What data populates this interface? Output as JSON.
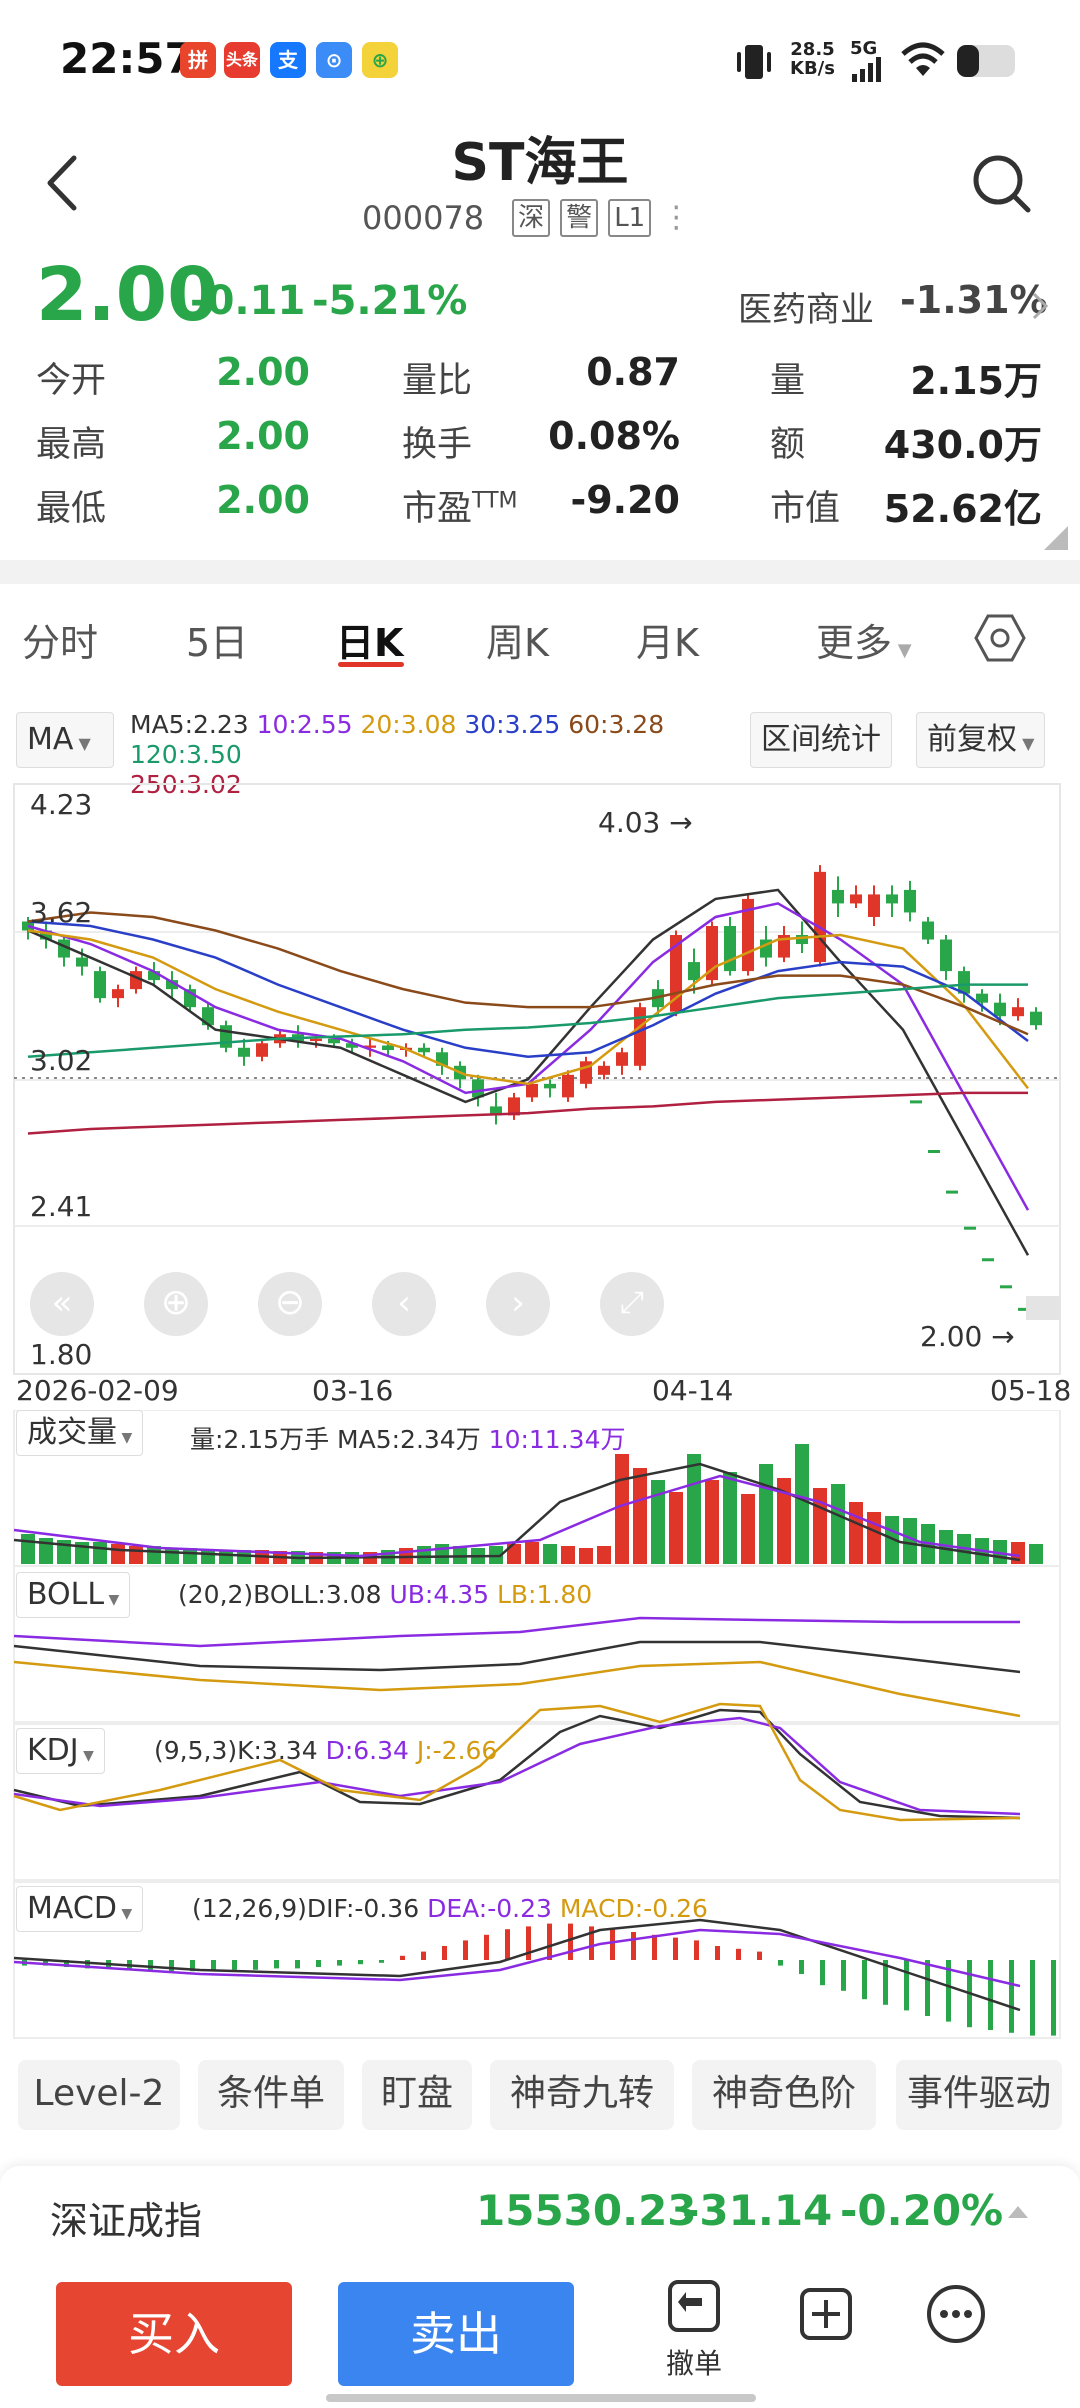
{
  "status": {
    "time": "22:57",
    "net_speed": "28.5",
    "net_unit": "KB/s",
    "signal": "5G",
    "app_icons": [
      "拼",
      "头条",
      "支",
      "⊙",
      "⊕"
    ]
  },
  "header": {
    "title": "ST海王",
    "code": "000078",
    "tags": [
      "深",
      "警",
      "L1"
    ]
  },
  "quote": {
    "price": "2.00",
    "change": "-0.11",
    "change_pct": "-5.21%",
    "sector": "医药商业",
    "sector_change": "-1.31%",
    "stats": [
      {
        "label": "今开",
        "value": "2.00",
        "color": "#2aa64a"
      },
      {
        "label": "最高",
        "value": "2.00",
        "color": "#2aa64a"
      },
      {
        "label": "最低",
        "value": "2.00",
        "color": "#2aa64a"
      },
      {
        "label": "量比",
        "value": "0.87",
        "color": "#222222"
      },
      {
        "label": "换手",
        "value": "0.08%",
        "color": "#222222"
      },
      {
        "label": "市盈TTM",
        "value": "-9.20",
        "color": "#222222"
      },
      {
        "label": "量",
        "value": "2.15万",
        "color": "#222222"
      },
      {
        "label": "额",
        "value": "430.0万",
        "color": "#222222"
      },
      {
        "label": "市值",
        "value": "52.62亿",
        "color": "#222222"
      }
    ]
  },
  "tabs": [
    "分时",
    "5日",
    "日K",
    "周K",
    "月K",
    "更多"
  ],
  "active_tab": "日K",
  "ma": {
    "selector": "MA",
    "values": [
      {
        "label": "MA5:2.23",
        "color": "#333333"
      },
      {
        "label": "10:2.55",
        "color": "#8a2be2"
      },
      {
        "label": "20:3.08",
        "color": "#d49a10"
      },
      {
        "label": "30:3.25",
        "color": "#2a3fc7"
      },
      {
        "label": "60:3.28",
        "color": "#8a4a1a"
      },
      {
        "label": "120:3.50",
        "color": "#1a9a6a"
      },
      {
        "label": "250:3.02",
        "color": "#b02040"
      }
    ],
    "btn_interval": "区间统计",
    "btn_adjust": "前复权"
  },
  "chart_data": {
    "type": "candlestick",
    "y_ticks": [
      "4.23",
      "3.62",
      "3.02",
      "2.41",
      "1.80"
    ],
    "ylim": [
      1.8,
      4.23
    ],
    "x_ticks": [
      "2026-02-09",
      "03-16",
      "04-14",
      "05-18"
    ],
    "high_marker": "4.03",
    "low_marker": "2.00",
    "up_color": "#e0362a",
    "down_color": "#2aa64a"
  },
  "indicators": {
    "volume": {
      "name": "成交量",
      "texts": [
        {
          "t": "量:2.15万手",
          "c": "#333333"
        },
        {
          "t": "MA5:2.34万",
          "c": "#333333"
        },
        {
          "t": "10:11.34万",
          "c": "#8a2be2"
        }
      ]
    },
    "boll": {
      "name": "BOLL",
      "texts": [
        {
          "t": "(20,2)BOLL:3.08",
          "c": "#333333"
        },
        {
          "t": "UB:4.35",
          "c": "#8a2be2"
        },
        {
          "t": "LB:1.80",
          "c": "#d49a10"
        }
      ]
    },
    "kdj": {
      "name": "KDJ",
      "texts": [
        {
          "t": "(9,5,3)K:3.34",
          "c": "#333333"
        },
        {
          "t": "D:6.34",
          "c": "#8a2be2"
        },
        {
          "t": "J:-2.66",
          "c": "#d49a10"
        }
      ]
    },
    "macd": {
      "name": "MACD",
      "texts": [
        {
          "t": "(12,26,9)DIF:-0.36",
          "c": "#333333"
        },
        {
          "t": "DEA:-0.23",
          "c": "#8a2be2"
        },
        {
          "t": "MACD:-0.26",
          "c": "#d49a10"
        }
      ]
    }
  },
  "functions": [
    "Level-2",
    "条件单",
    "盯盘",
    "神奇九转",
    "神奇色阶",
    "事件驱动"
  ],
  "index": {
    "name": "深证成指",
    "value": "15530.23",
    "change": "-31.14",
    "pct": "-0.20%"
  },
  "actions": {
    "buy": "买入",
    "sell": "卖出",
    "cancel": "撤单"
  }
}
